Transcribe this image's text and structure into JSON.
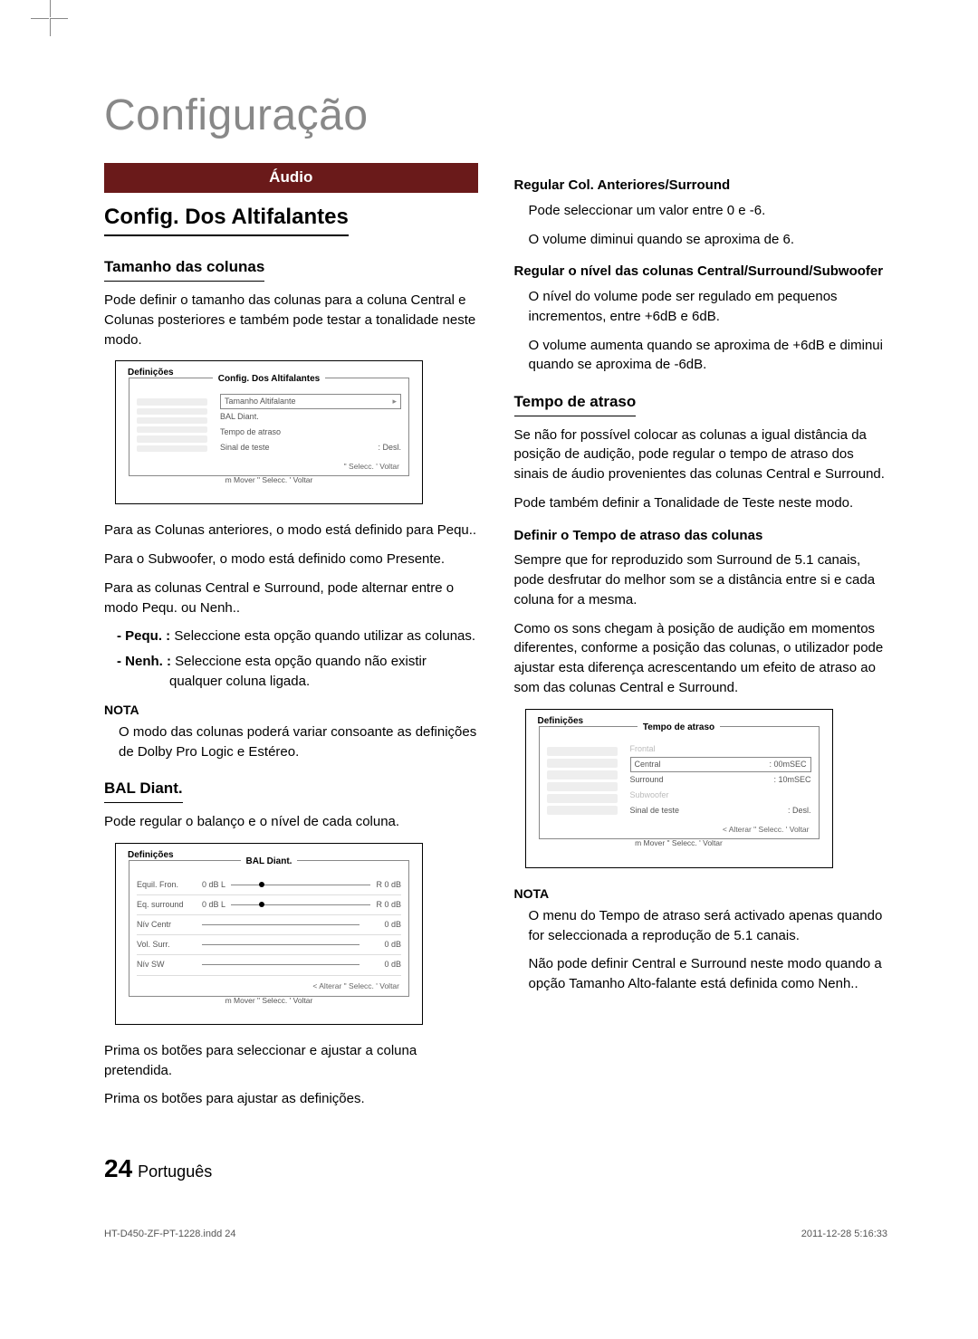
{
  "title": "Configuração",
  "banner": "Áudio",
  "left": {
    "h2": "Config. Dos Altifalantes",
    "h3_size": "Tamanho das colunas",
    "p_size": "Pode definir o tamanho das colunas para a coluna Central e Colunas posteriores e também pode testar a tonalidade neste modo.",
    "ui1": {
      "defs": "Definições",
      "hdr": "Config. Dos Altifalantes",
      "rows": {
        "r1": "Tamanho Altifalante",
        "r2": "BAL Diant.",
        "r3": "Tempo de atraso",
        "r4l": "Sinal de teste",
        "r4v": ":   Desl.",
        "foot": "\" Selecc.   ' Voltar",
        "sub": "m Mover   \" Selecc.   ' Voltar"
      }
    },
    "p_front": "Para as Colunas anteriores, o modo está definido para Pequ..",
    "p_sub": "Para o Subwoofer, o modo está definido como Presente.",
    "p_cs": "Para as colunas Central e Surround, pode alternar entre o modo Pequ. ou Nenh..",
    "li_pequ_lbl": "- Pequ.  :",
    "li_pequ": "Seleccione esta opção quando utilizar as colunas.",
    "li_nenh_lbl": "- Nenh.  :",
    "li_nenh": "Seleccione esta opção quando não existir qualquer coluna ligada.",
    "nota1": "NOTA",
    "nota1_txt": "O modo das colunas poderá variar consoante as definições de Dolby Pro Logic e Estéreo.",
    "h3_bal": "BAL Diant.",
    "p_bal": "Pode regular o balanço e o nível de cada coluna.",
    "ui2": {
      "defs": "Definições",
      "hdr": "BAL Diant.",
      "rows": {
        "r1l": "Equil. Fron.",
        "r1a": "0 dB L",
        "r1b": "R 0 dB",
        "r2l": "Eq. surround",
        "r2a": "0 dB L",
        "r2b": "R 0 dB",
        "r3l": "Nív Centr",
        "r3v": "0 dB",
        "r4l": "Vol. Surr.",
        "r4v": "0 dB",
        "r5l": "Nív SW",
        "r5v": "0 dB",
        "foot": "< Alterar \" Selecc.   ' Voltar",
        "sub": "m Mover   \" Selecc.   ' Voltar"
      }
    },
    "p_press1": "Prima os botões      para seleccionar e ajustar a coluna pretendida.",
    "p_press2": "Prima os botões      para ajustar as definições."
  },
  "right": {
    "h4_reg": "Regular Col. Anteriores/Surround",
    "p_reg1": "Pode seleccionar um valor entre 0 e -6.",
    "p_reg2": "O volume diminui quando se aproxima de  6.",
    "h4_lvl": "Regular o nível das colunas Central/Surround/Subwoofer",
    "p_lvl1": "O nível do volume pode ser regulado em pequenos incrementos, entre +6dB e  6dB.",
    "p_lvl2": "O volume aumenta quando se aproxima de +6dB e diminui quando se aproxima de -6dB.",
    "h3_delay": "Tempo de atraso",
    "p_delay1": "Se não for possível colocar as colunas a igual distância da posição de audição, pode regular o tempo de atraso dos sinais de áudio provenientes das colunas Central e Surround.",
    "p_delay2": "Pode também definir a Tonalidade de Teste neste modo.",
    "h4_def": "Definir o Tempo de atraso das colunas",
    "p_def1": "Sempre que for reproduzido som Surround de 5.1 canais, pode desfrutar do melhor som se a distância entre si e cada coluna for a mesma.",
    "p_def2": "Como os sons chegam à posição de audição em momentos diferentes, conforme a posição das colunas, o utilizador pode ajustar esta diferença acrescentando um efeito de atraso ao som das colunas Central e Surround.",
    "ui3": {
      "defs": "Definições",
      "hdr": "Tempo de atraso",
      "rows": {
        "r1": "Frontal",
        "r2l": "Central",
        "r2v": ":   00mSEC",
        "r3l": "Surround",
        "r3v": ":   10mSEC",
        "r4": "Subwoofer",
        "r5l": "Sinal de teste",
        "r5v": ":   Desl.",
        "foot": "< Alterar \" Selecc.   ' Voltar",
        "sub": "m Mover   \" Selecc.   ' Voltar"
      }
    },
    "nota2": "NOTA",
    "nota2_txt1": "O menu do Tempo de atraso será activado apenas quando for seleccionada a reprodução de 5.1 canais.",
    "nota2_txt2": "Não pode definir Central e Surround neste modo quando a opção Tamanho Alto-falante está definida como Nenh.."
  },
  "foot": {
    "num": "24",
    "lang": "Português"
  },
  "imprint": {
    "file": "HT-D450-ZF-PT-1228.indd   24",
    "date": "2011-12-28   5:16:33"
  }
}
